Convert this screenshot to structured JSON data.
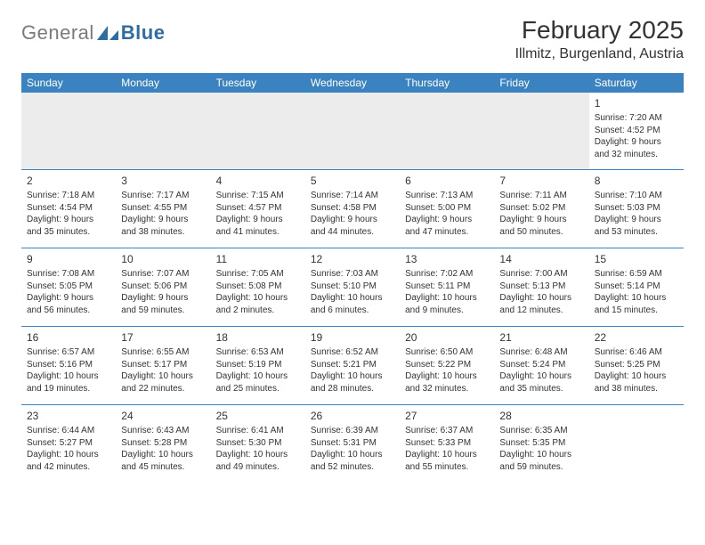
{
  "brand": {
    "gray": "General",
    "blue": "Blue"
  },
  "title": "February 2025",
  "location": "Illmitz, Burgenland, Austria",
  "colors": {
    "header_bg": "#3b83c0",
    "header_text": "#ffffff",
    "body_text": "#333333",
    "row_divider": "#3b83c0",
    "empty_bg": "#ececec",
    "page_bg": "#ffffff",
    "logo_gray": "#7a7a7a",
    "logo_blue": "#2e6ca4"
  },
  "typography": {
    "title_fontsize": 28,
    "location_fontsize": 16,
    "dayheader_fontsize": 12,
    "daynum_fontsize": 12,
    "cell_fontsize": 10
  },
  "day_headers": [
    "Sunday",
    "Monday",
    "Tuesday",
    "Wednesday",
    "Thursday",
    "Friday",
    "Saturday"
  ],
  "weeks": [
    [
      null,
      null,
      null,
      null,
      null,
      null,
      {
        "n": "1",
        "sunrise": "Sunrise: 7:20 AM",
        "sunset": "Sunset: 4:52 PM",
        "dl1": "Daylight: 9 hours",
        "dl2": "and 32 minutes."
      }
    ],
    [
      {
        "n": "2",
        "sunrise": "Sunrise: 7:18 AM",
        "sunset": "Sunset: 4:54 PM",
        "dl1": "Daylight: 9 hours",
        "dl2": "and 35 minutes."
      },
      {
        "n": "3",
        "sunrise": "Sunrise: 7:17 AM",
        "sunset": "Sunset: 4:55 PM",
        "dl1": "Daylight: 9 hours",
        "dl2": "and 38 minutes."
      },
      {
        "n": "4",
        "sunrise": "Sunrise: 7:15 AM",
        "sunset": "Sunset: 4:57 PM",
        "dl1": "Daylight: 9 hours",
        "dl2": "and 41 minutes."
      },
      {
        "n": "5",
        "sunrise": "Sunrise: 7:14 AM",
        "sunset": "Sunset: 4:58 PM",
        "dl1": "Daylight: 9 hours",
        "dl2": "and 44 minutes."
      },
      {
        "n": "6",
        "sunrise": "Sunrise: 7:13 AM",
        "sunset": "Sunset: 5:00 PM",
        "dl1": "Daylight: 9 hours",
        "dl2": "and 47 minutes."
      },
      {
        "n": "7",
        "sunrise": "Sunrise: 7:11 AM",
        "sunset": "Sunset: 5:02 PM",
        "dl1": "Daylight: 9 hours",
        "dl2": "and 50 minutes."
      },
      {
        "n": "8",
        "sunrise": "Sunrise: 7:10 AM",
        "sunset": "Sunset: 5:03 PM",
        "dl1": "Daylight: 9 hours",
        "dl2": "and 53 minutes."
      }
    ],
    [
      {
        "n": "9",
        "sunrise": "Sunrise: 7:08 AM",
        "sunset": "Sunset: 5:05 PM",
        "dl1": "Daylight: 9 hours",
        "dl2": "and 56 minutes."
      },
      {
        "n": "10",
        "sunrise": "Sunrise: 7:07 AM",
        "sunset": "Sunset: 5:06 PM",
        "dl1": "Daylight: 9 hours",
        "dl2": "and 59 minutes."
      },
      {
        "n": "11",
        "sunrise": "Sunrise: 7:05 AM",
        "sunset": "Sunset: 5:08 PM",
        "dl1": "Daylight: 10 hours",
        "dl2": "and 2 minutes."
      },
      {
        "n": "12",
        "sunrise": "Sunrise: 7:03 AM",
        "sunset": "Sunset: 5:10 PM",
        "dl1": "Daylight: 10 hours",
        "dl2": "and 6 minutes."
      },
      {
        "n": "13",
        "sunrise": "Sunrise: 7:02 AM",
        "sunset": "Sunset: 5:11 PM",
        "dl1": "Daylight: 10 hours",
        "dl2": "and 9 minutes."
      },
      {
        "n": "14",
        "sunrise": "Sunrise: 7:00 AM",
        "sunset": "Sunset: 5:13 PM",
        "dl1": "Daylight: 10 hours",
        "dl2": "and 12 minutes."
      },
      {
        "n": "15",
        "sunrise": "Sunrise: 6:59 AM",
        "sunset": "Sunset: 5:14 PM",
        "dl1": "Daylight: 10 hours",
        "dl2": "and 15 minutes."
      }
    ],
    [
      {
        "n": "16",
        "sunrise": "Sunrise: 6:57 AM",
        "sunset": "Sunset: 5:16 PM",
        "dl1": "Daylight: 10 hours",
        "dl2": "and 19 minutes."
      },
      {
        "n": "17",
        "sunrise": "Sunrise: 6:55 AM",
        "sunset": "Sunset: 5:17 PM",
        "dl1": "Daylight: 10 hours",
        "dl2": "and 22 minutes."
      },
      {
        "n": "18",
        "sunrise": "Sunrise: 6:53 AM",
        "sunset": "Sunset: 5:19 PM",
        "dl1": "Daylight: 10 hours",
        "dl2": "and 25 minutes."
      },
      {
        "n": "19",
        "sunrise": "Sunrise: 6:52 AM",
        "sunset": "Sunset: 5:21 PM",
        "dl1": "Daylight: 10 hours",
        "dl2": "and 28 minutes."
      },
      {
        "n": "20",
        "sunrise": "Sunrise: 6:50 AM",
        "sunset": "Sunset: 5:22 PM",
        "dl1": "Daylight: 10 hours",
        "dl2": "and 32 minutes."
      },
      {
        "n": "21",
        "sunrise": "Sunrise: 6:48 AM",
        "sunset": "Sunset: 5:24 PM",
        "dl1": "Daylight: 10 hours",
        "dl2": "and 35 minutes."
      },
      {
        "n": "22",
        "sunrise": "Sunrise: 6:46 AM",
        "sunset": "Sunset: 5:25 PM",
        "dl1": "Daylight: 10 hours",
        "dl2": "and 38 minutes."
      }
    ],
    [
      {
        "n": "23",
        "sunrise": "Sunrise: 6:44 AM",
        "sunset": "Sunset: 5:27 PM",
        "dl1": "Daylight: 10 hours",
        "dl2": "and 42 minutes."
      },
      {
        "n": "24",
        "sunrise": "Sunrise: 6:43 AM",
        "sunset": "Sunset: 5:28 PM",
        "dl1": "Daylight: 10 hours",
        "dl2": "and 45 minutes."
      },
      {
        "n": "25",
        "sunrise": "Sunrise: 6:41 AM",
        "sunset": "Sunset: 5:30 PM",
        "dl1": "Daylight: 10 hours",
        "dl2": "and 49 minutes."
      },
      {
        "n": "26",
        "sunrise": "Sunrise: 6:39 AM",
        "sunset": "Sunset: 5:31 PM",
        "dl1": "Daylight: 10 hours",
        "dl2": "and 52 minutes."
      },
      {
        "n": "27",
        "sunrise": "Sunrise: 6:37 AM",
        "sunset": "Sunset: 5:33 PM",
        "dl1": "Daylight: 10 hours",
        "dl2": "and 55 minutes."
      },
      {
        "n": "28",
        "sunrise": "Sunrise: 6:35 AM",
        "sunset": "Sunset: 5:35 PM",
        "dl1": "Daylight: 10 hours",
        "dl2": "and 59 minutes."
      },
      null
    ]
  ]
}
